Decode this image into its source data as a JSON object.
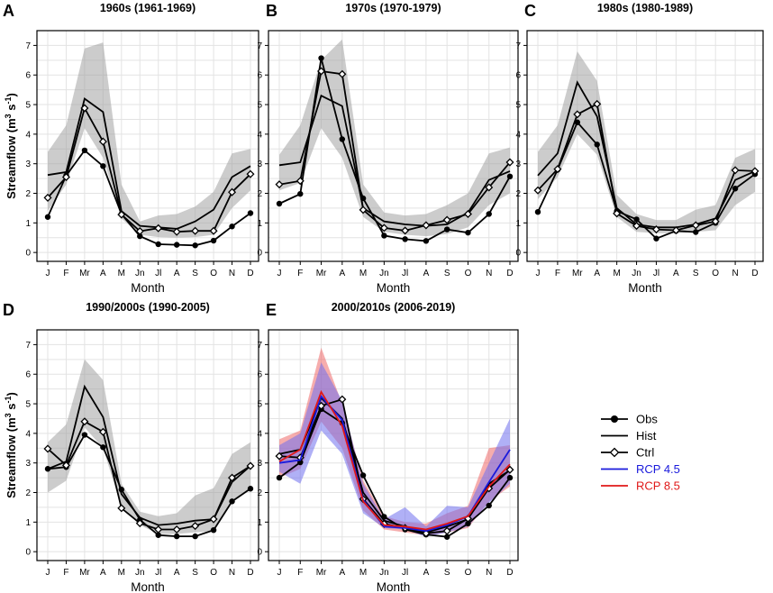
{
  "figure": {
    "x_axis_label": "Month",
    "y_axis_label": "Streamflow (m",
    "y_axis_label_sup1": "3",
    "y_axis_label_mid": " s",
    "y_axis_label_sup2": "-1",
    "y_axis_label_end": ")"
  },
  "legend": {
    "items": [
      {
        "label": "Obs",
        "style": "obs",
        "color": "#000000"
      },
      {
        "label": "Hist",
        "style": "hist",
        "color": "#000000"
      },
      {
        "label": "Ctrl",
        "style": "ctrl",
        "color": "#000000"
      },
      {
        "label": "RCP 4.5",
        "style": "line",
        "color": "#1a1adc"
      },
      {
        "label": "RCP 8.5",
        "style": "line",
        "color": "#e01818"
      }
    ]
  },
  "chart_data": [
    {
      "type": "line",
      "panel_letter": "A",
      "title": "1960s (1961-1969)",
      "xlabel": "Month",
      "ylabel": "Streamflow (m3 s-1)",
      "categories": [
        "J",
        "F",
        "Mr",
        "A",
        "M",
        "Jn",
        "Jl",
        "A",
        "S",
        "O",
        "N",
        "D"
      ],
      "ylim": [
        -0.3,
        7.5
      ],
      "yticks": [
        0,
        1,
        2,
        3,
        4,
        5,
        6,
        7
      ],
      "grid": true,
      "series": [
        {
          "name": "Obs",
          "values": [
            1.2,
            2.6,
            3.45,
            2.92,
            1.3,
            0.55,
            0.28,
            0.26,
            0.24,
            0.4,
            0.88,
            1.33
          ]
        },
        {
          "name": "Hist",
          "values": [
            2.62,
            2.72,
            5.2,
            4.75,
            1.4,
            0.9,
            0.85,
            0.8,
            1.05,
            1.45,
            2.55,
            2.92
          ]
        },
        {
          "name": "Ctrl",
          "values": [
            1.85,
            2.55,
            4.88,
            3.75,
            1.28,
            0.72,
            0.82,
            0.7,
            0.73,
            0.73,
            2.04,
            2.65
          ]
        }
      ],
      "bands": [
        {
          "name": "Hist range",
          "color": "#a3a3a3",
          "lower": [
            1.4,
            2.3,
            4.2,
            3.2,
            1.15,
            0.6,
            0.52,
            0.5,
            0.52,
            0.6,
            1.5,
            2.1
          ],
          "upper": [
            3.4,
            4.3,
            6.9,
            7.1,
            2.3,
            1.05,
            1.25,
            1.3,
            1.55,
            2.05,
            3.35,
            3.5
          ]
        }
      ]
    },
    {
      "type": "line",
      "panel_letter": "B",
      "title": "1970s (1970-1979)",
      "xlabel": "Month",
      "ylabel": "Streamflow (m3 s-1)",
      "categories": [
        "J",
        "F",
        "Mr",
        "A",
        "M",
        "Jn",
        "Jl",
        "A",
        "S",
        "O",
        "N",
        "D"
      ],
      "ylim": [
        -0.3,
        7.5
      ],
      "yticks": [
        0,
        1,
        2,
        3,
        4,
        5,
        6,
        7
      ],
      "grid": true,
      "series": [
        {
          "name": "Obs",
          "values": [
            1.65,
            1.98,
            6.57,
            3.83,
            1.83,
            0.57,
            0.45,
            0.39,
            0.78,
            0.67,
            1.3,
            2.57
          ]
        },
        {
          "name": "Hist",
          "values": [
            2.95,
            3.05,
            5.3,
            4.95,
            1.5,
            1.05,
            0.95,
            0.9,
            0.95,
            1.35,
            2.45,
            2.75
          ]
        },
        {
          "name": "Ctrl",
          "values": [
            2.3,
            2.42,
            6.13,
            6.03,
            1.44,
            0.83,
            0.74,
            0.92,
            1.1,
            1.3,
            2.2,
            3.05
          ]
        }
      ],
      "bands": [
        {
          "name": "Hist range",
          "color": "#a3a3a3",
          "lower": [
            2.1,
            2.35,
            4.2,
            3.2,
            1.2,
            0.7,
            0.6,
            0.55,
            0.62,
            0.85,
            1.6,
            2.0
          ],
          "upper": [
            3.3,
            4.3,
            6.5,
            7.2,
            2.3,
            1.35,
            1.25,
            1.3,
            1.6,
            2.0,
            3.35,
            3.55
          ]
        }
      ]
    },
    {
      "type": "line",
      "panel_letter": "C",
      "title": "1980s (1980-1989)",
      "xlabel": "Month",
      "ylabel": "Streamflow (m3 s-1)",
      "categories": [
        "J",
        "F",
        "Mr",
        "A",
        "M",
        "Jn",
        "Jl",
        "A",
        "S",
        "O",
        "N",
        "D"
      ],
      "ylim": [
        -0.3,
        7.5
      ],
      "yticks": [
        0,
        1,
        2,
        3,
        4,
        5,
        6,
        7
      ],
      "grid": true,
      "series": [
        {
          "name": "Obs",
          "values": [
            1.37,
            2.8,
            4.4,
            3.65,
            1.4,
            1.12,
            0.47,
            0.73,
            0.69,
            1.0,
            2.16,
            2.65
          ]
        },
        {
          "name": "Hist",
          "values": [
            2.6,
            3.35,
            5.75,
            4.6,
            1.5,
            0.95,
            0.85,
            0.85,
            0.95,
            1.15,
            2.45,
            2.75
          ]
        },
        {
          "name": "Ctrl",
          "values": [
            2.1,
            2.82,
            4.67,
            5.02,
            1.32,
            0.9,
            0.78,
            0.75,
            0.92,
            1.05,
            2.78,
            2.75
          ]
        }
      ],
      "bands": [
        {
          "name": "Hist range",
          "color": "#a3a3a3",
          "lower": [
            1.8,
            2.55,
            4.0,
            3.3,
            1.2,
            0.7,
            0.65,
            0.65,
            0.7,
            0.75,
            1.6,
            2.05
          ],
          "upper": [
            3.4,
            4.3,
            6.8,
            5.8,
            1.95,
            1.3,
            1.1,
            1.1,
            1.45,
            1.6,
            3.2,
            3.5
          ]
        }
      ]
    },
    {
      "type": "line",
      "panel_letter": "D",
      "title": "1990/2000s (1990-2005)",
      "xlabel": "Month",
      "ylabel": "Streamflow (m3 s-1)",
      "categories": [
        "J",
        "F",
        "Mr",
        "A",
        "M",
        "Jn",
        "Jl",
        "A",
        "S",
        "O",
        "N",
        "D"
      ],
      "ylim": [
        -0.3,
        7.5
      ],
      "yticks": [
        0,
        1,
        2,
        3,
        4,
        5,
        6,
        7
      ],
      "grid": true,
      "series": [
        {
          "name": "Obs",
          "values": [
            2.8,
            2.86,
            3.95,
            3.53,
            2.1,
            1.08,
            0.56,
            0.52,
            0.52,
            0.73,
            1.7,
            2.13
          ]
        },
        {
          "name": "Hist",
          "values": [
            2.8,
            3.05,
            5.58,
            4.55,
            1.95,
            1.15,
            0.9,
            0.95,
            1.05,
            1.1,
            2.35,
            2.9
          ]
        },
        {
          "name": "Ctrl",
          "values": [
            3.48,
            2.92,
            4.4,
            4.05,
            1.47,
            0.96,
            0.75,
            0.75,
            0.87,
            1.1,
            2.5,
            2.9
          ]
        }
      ],
      "bands": [
        {
          "name": "Hist range",
          "color": "#a3a3a3",
          "lower": [
            2.0,
            2.4,
            4.2,
            3.5,
            1.5,
            0.9,
            0.6,
            0.6,
            0.65,
            0.7,
            1.7,
            2.1
          ],
          "upper": [
            3.7,
            4.3,
            6.5,
            5.8,
            2.3,
            1.35,
            1.2,
            1.3,
            1.9,
            2.15,
            3.3,
            3.7
          ]
        }
      ]
    },
    {
      "type": "line",
      "panel_letter": "E",
      "title": "2000/2010s (2006-2019)",
      "xlabel": "Month",
      "ylabel": "Streamflow (m3 s-1)",
      "categories": [
        "J",
        "F",
        "Mr",
        "A",
        "M",
        "Jn",
        "Jl",
        "A",
        "S",
        "O",
        "N",
        "D"
      ],
      "ylim": [
        -0.3,
        7.5
      ],
      "yticks": [
        0,
        1,
        2,
        3,
        4,
        5,
        6,
        7
      ],
      "grid": true,
      "series": [
        {
          "name": "Obs",
          "values": [
            2.5,
            3.02,
            4.82,
            4.35,
            2.58,
            1.18,
            0.75,
            0.58,
            0.5,
            0.95,
            1.56,
            2.5
          ]
        },
        {
          "name": "Hist",
          "values": [
            3.3,
            3.45,
            5.2,
            4.5,
            2.0,
            1.05,
            0.85,
            0.65,
            0.85,
            1.1,
            2.3,
            2.75
          ]
        },
        {
          "name": "Ctrl",
          "values": [
            3.23,
            3.18,
            4.93,
            5.15,
            1.78,
            0.94,
            0.8,
            0.62,
            0.7,
            1.12,
            2.14,
            2.77
          ]
        },
        {
          "name": "RCP 4.5",
          "values": [
            3.0,
            3.1,
            5.25,
            4.45,
            1.75,
            0.85,
            0.8,
            0.7,
            0.9,
            1.2,
            2.35,
            3.45
          ]
        },
        {
          "name": "RCP 8.5",
          "values": [
            3.05,
            3.45,
            5.4,
            4.25,
            1.7,
            0.9,
            0.85,
            0.75,
            0.95,
            1.2,
            2.2,
            2.95
          ]
        }
      ],
      "bands": [
        {
          "name": "RCP 8.5 range",
          "color": "#ee6a6a",
          "lower": [
            2.5,
            2.8,
            4.4,
            3.5,
            1.4,
            0.75,
            0.65,
            0.55,
            0.65,
            0.8,
            1.7,
            2.2
          ],
          "upper": [
            3.8,
            4.1,
            6.9,
            5.0,
            2.4,
            1.2,
            1.0,
            0.95,
            1.3,
            1.55,
            3.5,
            3.6
          ]
        },
        {
          "name": "RCP 4.5 range",
          "color": "#6f6fef",
          "lower": [
            2.7,
            2.3,
            4.1,
            3.3,
            1.3,
            0.8,
            0.75,
            0.5,
            0.65,
            0.85,
            1.65,
            2.3
          ],
          "upper": [
            3.6,
            4.0,
            6.4,
            5.1,
            2.3,
            1.1,
            1.5,
            0.85,
            1.55,
            1.5,
            3.0,
            4.5
          ]
        }
      ]
    }
  ]
}
